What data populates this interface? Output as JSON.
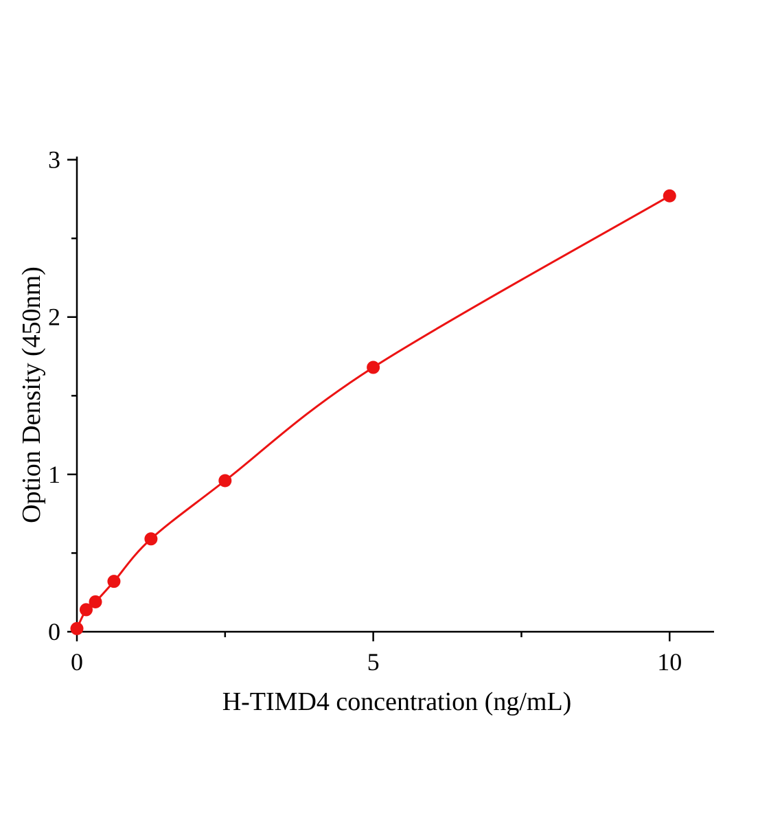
{
  "chart_data": {
    "type": "line",
    "title": "",
    "xlabel": "H-TIMD4 concentration (ng/mL)",
    "ylabel": "Option Density (450nm)",
    "x": [
      0,
      0.156,
      0.313,
      0.625,
      1.25,
      2.5,
      5,
      10
    ],
    "y": [
      0.02,
      0.14,
      0.19,
      0.32,
      0.59,
      0.96,
      1.68,
      2.77
    ],
    "xlim": [
      0,
      10.75
    ],
    "ylim": [
      0,
      3.02
    ],
    "x_major_ticks": [
      0,
      5,
      10
    ],
    "x_tick_labels": [
      "0",
      "5",
      "10"
    ],
    "x_minor_ticks": [
      2.5,
      7.5
    ],
    "y_major_ticks": [
      0,
      1,
      2,
      3
    ],
    "y_tick_labels": [
      "0",
      "1",
      "2",
      "3"
    ],
    "y_minor_ticks": [
      0.5,
      1.5,
      2.5
    ],
    "grid": false,
    "legend": "none",
    "background_color": "#ffffff",
    "axis_color": "#000000",
    "line_color": "#ec1313",
    "marker_color": "#ec1313",
    "marker_radius": 9.5,
    "line_width": 3,
    "axis_width": 2.5
  }
}
